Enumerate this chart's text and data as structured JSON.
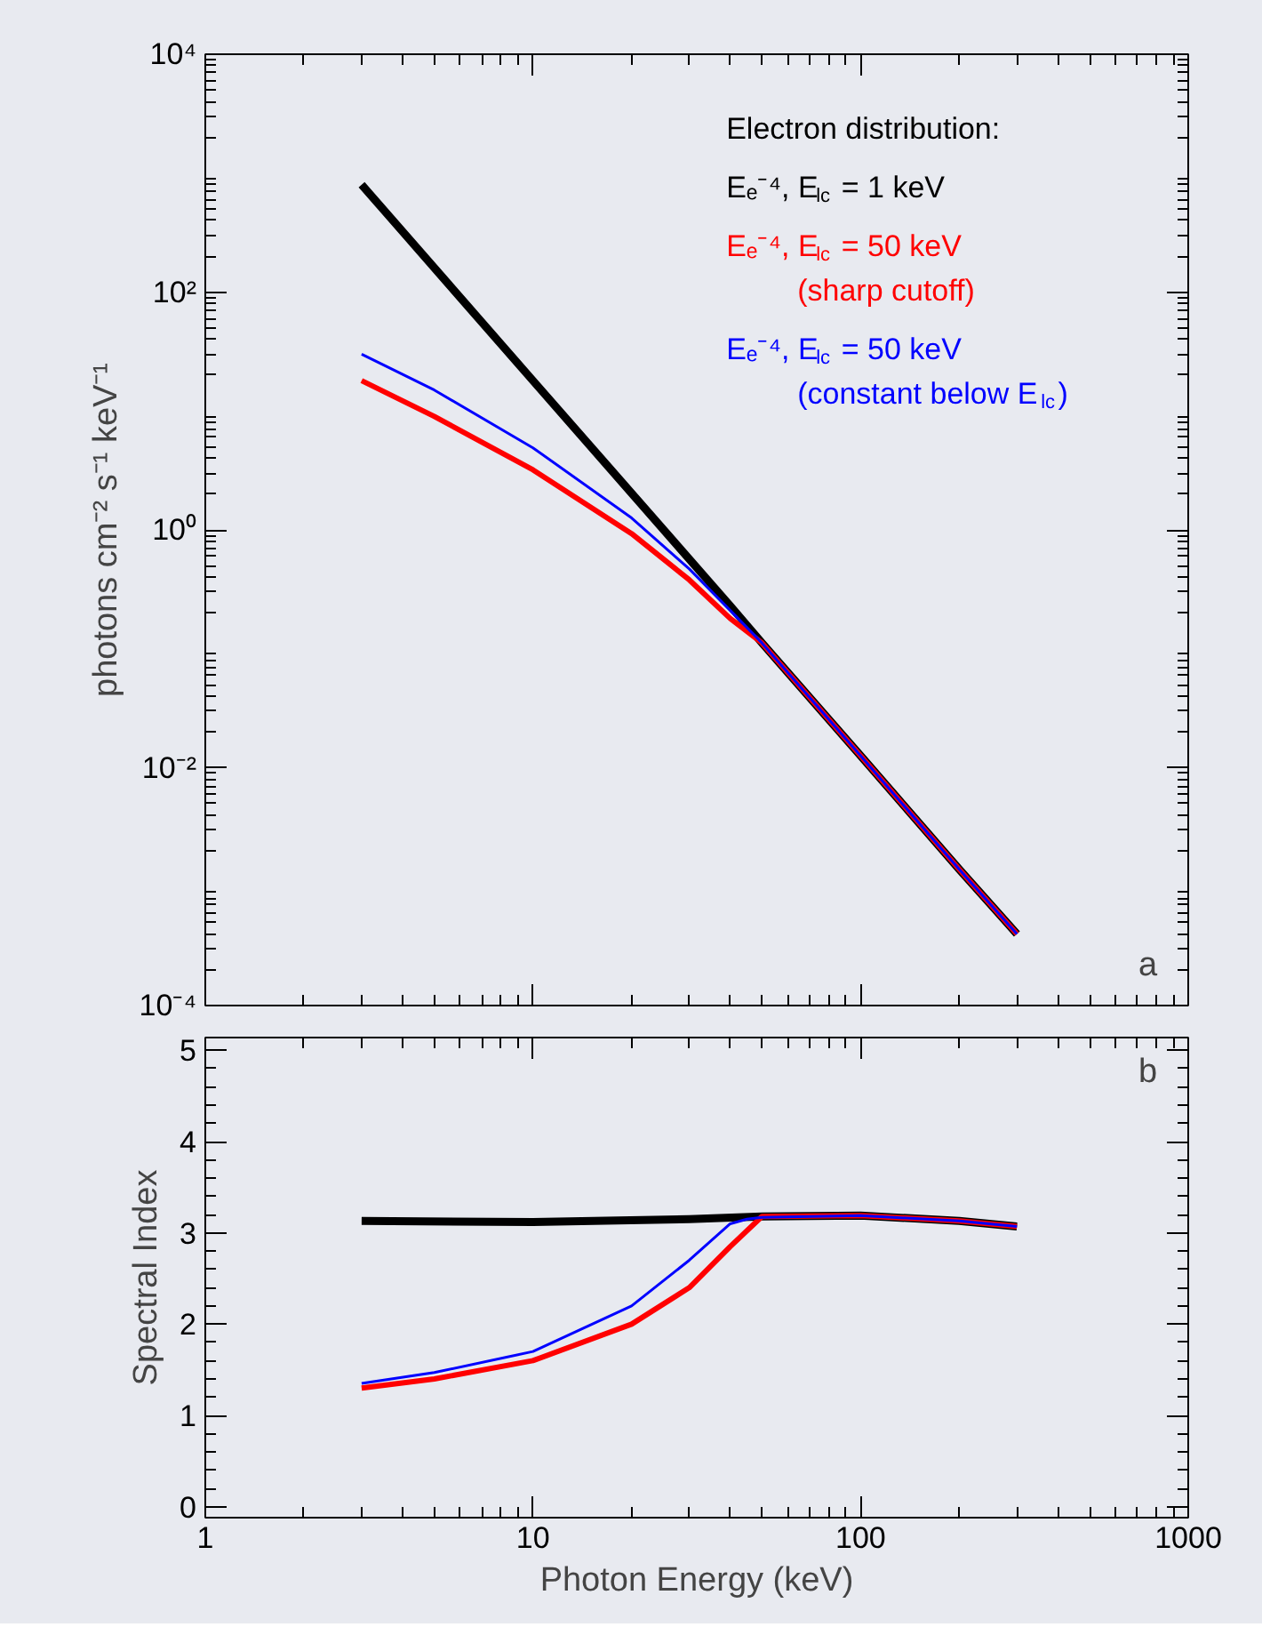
{
  "chart_data": [
    {
      "type": "line",
      "ylabel": "photons cm⁻² s⁻¹ keV⁻¹",
      "legend_title": "Electron distribution:",
      "legend": "top right",
      "log": "xy",
      "tick_labels": "y",
      "xlim": [
        1,
        1000
      ],
      "ylim": [
        0.0001,
        10000
      ],
      "xticks": [
        {
          "value": 1,
          "label": null
        },
        {
          "value": 10,
          "label": null
        },
        {
          "value": 100,
          "label": null
        },
        {
          "value": 1000,
          "label": null
        }
      ],
      "yticks": [
        {
          "value": 0.0001,
          "label": "10⁻⁴"
        },
        {
          "value": 0.01,
          "label": "10⁻²"
        },
        {
          "value": 1,
          "label": "10⁰"
        },
        {
          "value": 100,
          "label": "10²"
        },
        {
          "value": 10000,
          "label": "10⁴"
        }
      ],
      "annotations": [
        "a"
      ],
      "series": [
        {
          "name": "Eₑ⁻⁴, E$_{lc}$ = 1 keV",
          "color": "#000000",
          "x": [
            3,
            10,
            40,
            50,
            100,
            200,
            300
          ],
          "values": [
            800,
            18,
            0.23,
            0.112,
            0.0126,
            0.0014,
            0.0004
          ]
        },
        {
          "name": "Eₑ⁻⁴, E$_{lc}$ = 50 keV\n(sharp cutoff)",
          "color": "#ff0000",
          "x": [
            3,
            5,
            10,
            20,
            30,
            40,
            50,
            100,
            200,
            300
          ],
          "values": [
            18,
            9,
            3.2,
            0.93,
            0.38,
            0.18,
            0.112,
            0.0126,
            0.0014,
            0.0004
          ]
        },
        {
          "name": "Eₑ⁻⁴, E$_{lc}$ = 50 keV\n(constant below E$_{lc}$)",
          "color": "#0000ff",
          "x": [
            3,
            5,
            10,
            20,
            30,
            40,
            50,
            100,
            200,
            300
          ],
          "values": [
            30,
            15,
            4.9,
            1.26,
            0.47,
            0.21,
            0.112,
            0.0126,
            0.0014,
            0.0004
          ]
        }
      ]
    },
    {
      "type": "line",
      "xlabel": "Photon Energy (keV)",
      "ylabel": "Spectral Index",
      "log": "x",
      "xlim": [
        1,
        1000
      ],
      "ylim": [
        -0.12,
        5.14
      ],
      "xticks": [
        1,
        10,
        100,
        1000
      ],
      "yticks": [
        0,
        1,
        2,
        3,
        4,
        5
      ],
      "annotations": [
        "b"
      ],
      "series": [
        {
          "color": "#000000",
          "x": [
            3,
            10,
            30,
            50,
            100,
            200,
            300
          ],
          "values": [
            3.13,
            3.12,
            3.15,
            3.18,
            3.19,
            3.13,
            3.07
          ]
        },
        {
          "color": "#ff0000",
          "x": [
            3,
            5,
            10,
            20,
            30,
            40,
            50,
            100,
            200,
            300
          ],
          "values": [
            1.3,
            1.4,
            1.6,
            2.0,
            2.4,
            2.85,
            3.18,
            3.19,
            3.13,
            3.07
          ]
        },
        {
          "color": "#0000ff",
          "x": [
            3,
            5,
            10,
            20,
            30,
            40,
            45,
            50,
            100,
            200,
            300
          ],
          "values": [
            1.35,
            1.47,
            1.7,
            2.2,
            2.7,
            3.1,
            3.15,
            3.17,
            3.19,
            3.13,
            3.07
          ]
        }
      ]
    }
  ]
}
